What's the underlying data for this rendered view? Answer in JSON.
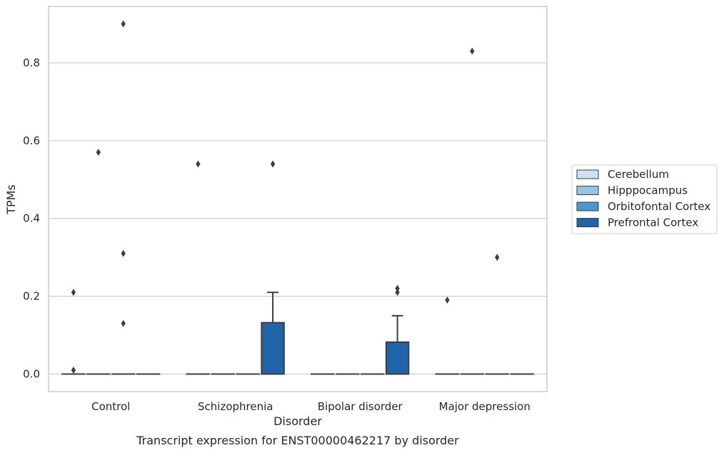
{
  "chart_data": {
    "type": "box",
    "title": "",
    "caption": "Transcript expression for ENST00000462217 by disorder",
    "xlabel": "Disorder",
    "ylabel": "TPMs",
    "ylim": [
      -0.045,
      0.945
    ],
    "yticks": [
      0.0,
      0.2,
      0.4,
      0.6,
      0.8
    ],
    "ytick_labels": [
      "0.0",
      "0.2",
      "0.4",
      "0.6",
      "0.8"
    ],
    "grid": "horizontal",
    "legend_position": "right",
    "categories": [
      "Control",
      "Schizophrenia",
      "Bipolar disorder",
      "Major depression"
    ],
    "series": [
      {
        "name": "Cerebellum",
        "color": "#d0e1f2",
        "boxes": [
          {
            "q1": 0,
            "median": 0,
            "q3": 0,
            "whisker_low": 0,
            "whisker_high": 0,
            "outliers": [
              0.01,
              0.21
            ]
          },
          {
            "q1": 0,
            "median": 0,
            "q3": 0,
            "whisker_low": 0,
            "whisker_high": 0,
            "outliers": [
              0.54
            ]
          },
          {
            "q1": 0,
            "median": 0,
            "q3": 0,
            "whisker_low": 0,
            "whisker_high": 0,
            "outliers": []
          },
          {
            "q1": 0,
            "median": 0,
            "q3": 0,
            "whisker_low": 0,
            "whisker_high": 0,
            "outliers": [
              0.19
            ]
          }
        ]
      },
      {
        "name": "Hipppocampus",
        "color": "#94c4df",
        "boxes": [
          {
            "q1": 0,
            "median": 0,
            "q3": 0,
            "whisker_low": 0,
            "whisker_high": 0,
            "outliers": [
              0.57
            ]
          },
          {
            "q1": 0,
            "median": 0,
            "q3": 0,
            "whisker_low": 0,
            "whisker_high": 0,
            "outliers": []
          },
          {
            "q1": 0,
            "median": 0,
            "q3": 0,
            "whisker_low": 0,
            "whisker_high": 0,
            "outliers": []
          },
          {
            "q1": 0,
            "median": 0,
            "q3": 0,
            "whisker_low": 0,
            "whisker_high": 0,
            "outliers": [
              0.83
            ]
          }
        ]
      },
      {
        "name": "Orbitofontal Cortex",
        "color": "#4a98c9",
        "boxes": [
          {
            "q1": 0,
            "median": 0,
            "q3": 0,
            "whisker_low": 0,
            "whisker_high": 0,
            "outliers": [
              0.13,
              0.31,
              0.9
            ]
          },
          {
            "q1": 0,
            "median": 0,
            "q3": 0,
            "whisker_low": 0,
            "whisker_high": 0,
            "outliers": []
          },
          {
            "q1": 0,
            "median": 0,
            "q3": 0,
            "whisker_low": 0,
            "whisker_high": 0,
            "outliers": []
          },
          {
            "q1": 0,
            "median": 0,
            "q3": 0,
            "whisker_low": 0,
            "whisker_high": 0,
            "outliers": [
              0.3
            ]
          }
        ]
      },
      {
        "name": "Prefrontal Cortex",
        "color": "#2264a8",
        "boxes": [
          {
            "q1": 0,
            "median": 0,
            "q3": 0,
            "whisker_low": 0,
            "whisker_high": 0,
            "outliers": []
          },
          {
            "q1": 0,
            "median": 0,
            "q3": 0.132,
            "whisker_low": 0,
            "whisker_high": 0.21,
            "outliers": [
              0.54
            ]
          },
          {
            "q1": 0,
            "median": 0,
            "q3": 0.082,
            "whisker_low": 0,
            "whisker_high": 0.15,
            "outliers": [
              0.21,
              0.22
            ]
          },
          {
            "q1": 0,
            "median": 0,
            "q3": 0,
            "whisker_low": 0,
            "whisker_high": 0,
            "outliers": []
          }
        ]
      }
    ]
  }
}
